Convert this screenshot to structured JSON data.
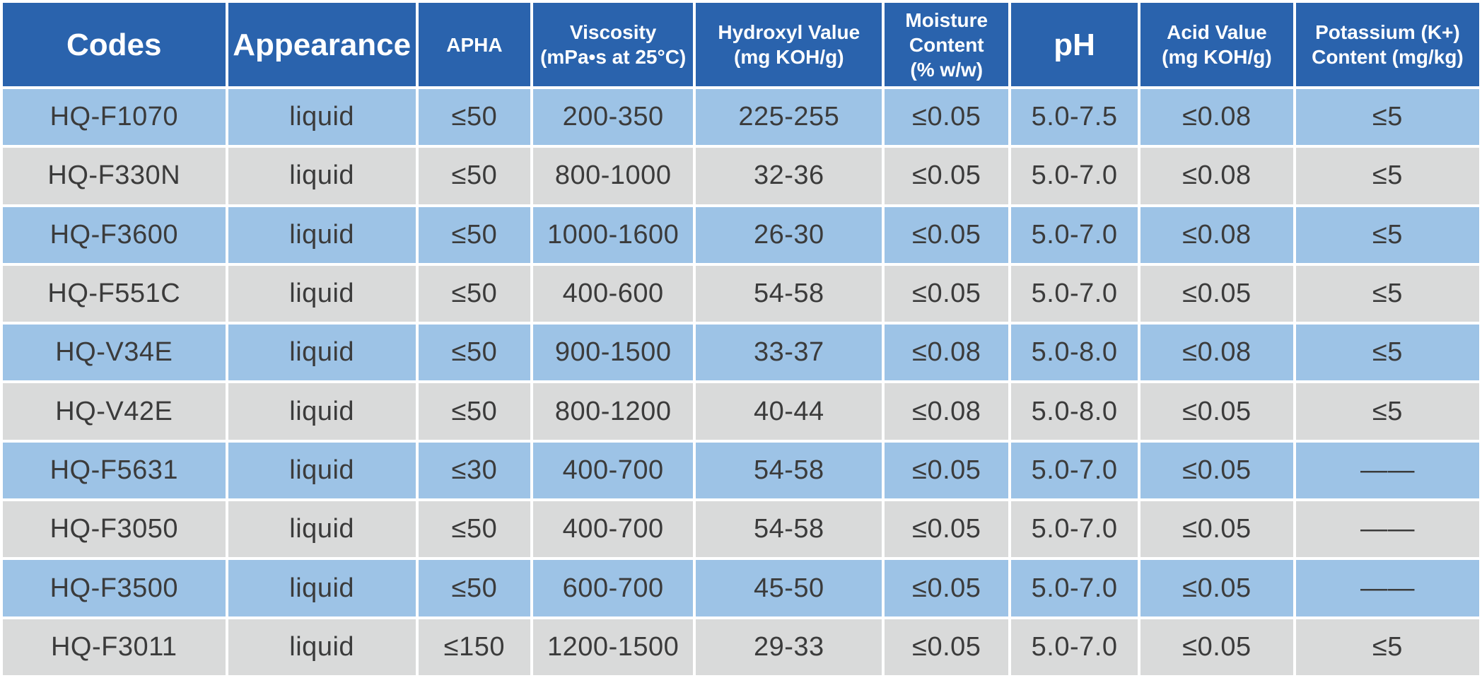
{
  "colors": {
    "header_bg": "#2a63ad",
    "header_text": "#ffffff",
    "row_blue": "#9dc3e6",
    "row_gray": "#d9dada",
    "cell_text": "#3b3b3b",
    "grid": "#ffffff"
  },
  "table": {
    "columns": [
      {
        "label": "Codes",
        "width": "15.3%"
      },
      {
        "label": "Appearance",
        "width": "12.9%"
      },
      {
        "label": "APHA",
        "width": "7.7%"
      },
      {
        "label": "Viscosity\n(mPa•s at 25°C)",
        "width": "11.0%"
      },
      {
        "label": "Hydroxyl Value\n(mg KOH/g)",
        "width": "12.8%"
      },
      {
        "label": "Moisture\nContent\n(% w/w)",
        "width": "8.5%"
      },
      {
        "label": "pH",
        "width": "8.7%"
      },
      {
        "label": "Acid Value\n(mg KOH/g)",
        "width": "10.5%"
      },
      {
        "label": "Potassium (K+)\nContent (mg/kg)",
        "width": "12.6%"
      }
    ],
    "rows": [
      {
        "cells": [
          "HQ-F1070",
          "liquid",
          "≤50",
          "200-350",
          "225-255",
          "≤0.05",
          "5.0-7.5",
          "≤0.08",
          "≤5"
        ]
      },
      {
        "cells": [
          "HQ-F330N",
          "liquid",
          "≤50",
          "800-1000",
          "32-36",
          "≤0.05",
          "5.0-7.0",
          "≤0.08",
          "≤5"
        ]
      },
      {
        "cells": [
          "HQ-F3600",
          "liquid",
          "≤50",
          "1000-1600",
          "26-30",
          "≤0.05",
          "5.0-7.0",
          "≤0.08",
          "≤5"
        ]
      },
      {
        "cells": [
          "HQ-F551C",
          "liquid",
          "≤50",
          "400-600",
          "54-58",
          "≤0.05",
          "5.0-7.0",
          "≤0.05",
          "≤5"
        ]
      },
      {
        "cells": [
          "HQ-V34E",
          "liquid",
          "≤50",
          "900-1500",
          "33-37",
          "≤0.08",
          "5.0-8.0",
          "≤0.08",
          "≤5"
        ]
      },
      {
        "cells": [
          "HQ-V42E",
          "liquid",
          "≤50",
          "800-1200",
          "40-44",
          "≤0.08",
          "5.0-8.0",
          "≤0.05",
          "≤5"
        ]
      },
      {
        "cells": [
          "HQ-F5631",
          "liquid",
          "≤30",
          "400-700",
          "54-58",
          "≤0.05",
          "5.0-7.0",
          "≤0.05",
          "——"
        ]
      },
      {
        "cells": [
          "HQ-F3050",
          "liquid",
          "≤50",
          "400-700",
          "54-58",
          "≤0.05",
          "5.0-7.0",
          "≤0.05",
          "——"
        ]
      },
      {
        "cells": [
          "HQ-F3500",
          "liquid",
          "≤50",
          "600-700",
          "45-50",
          "≤0.05",
          "5.0-7.0",
          "≤0.05",
          "——"
        ]
      },
      {
        "cells": [
          "HQ-F3011",
          "liquid",
          "≤150",
          "1200-1500",
          "29-33",
          "≤0.05",
          "5.0-7.0",
          "≤0.05",
          "≤5"
        ]
      }
    ]
  }
}
